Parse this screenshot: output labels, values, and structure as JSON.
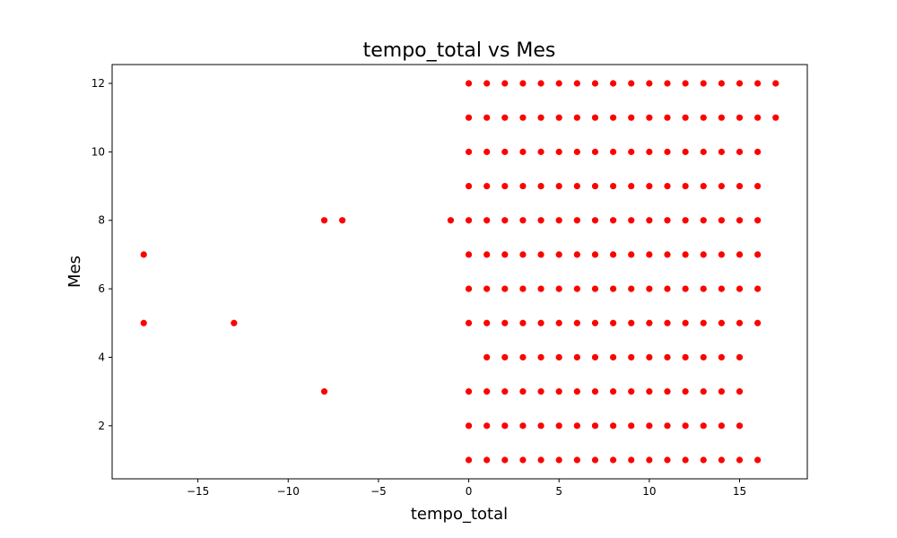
{
  "chart_data": {
    "type": "scatter",
    "title": "tempo_total vs Mes",
    "xlabel": "tempo_total",
    "ylabel": "Mes",
    "xlim": [
      -19.75,
      18.75
    ],
    "ylim": [
      0.45,
      12.55
    ],
    "xticks": [
      -15,
      -10,
      -5,
      0,
      5,
      10,
      15
    ],
    "xtick_labels": [
      "−15",
      "−10",
      "−5",
      "0",
      "5",
      "10",
      "15"
    ],
    "yticks": [
      2,
      4,
      6,
      8,
      10,
      12
    ],
    "ytick_labels": [
      "2",
      "4",
      "6",
      "8",
      "10",
      "12"
    ],
    "grid": false,
    "marker_color": "#ff0000",
    "series": [
      {
        "points": [
          [
            0,
            12
          ],
          [
            1,
            12
          ],
          [
            2,
            12
          ],
          [
            3,
            12
          ],
          [
            4,
            12
          ],
          [
            5,
            12
          ],
          [
            6,
            12
          ],
          [
            7,
            12
          ],
          [
            8,
            12
          ],
          [
            9,
            12
          ],
          [
            10,
            12
          ],
          [
            11,
            12
          ],
          [
            12,
            12
          ],
          [
            13,
            12
          ],
          [
            14,
            12
          ],
          [
            15,
            12
          ],
          [
            16,
            12
          ],
          [
            17,
            12
          ],
          [
            0,
            11
          ],
          [
            1,
            11
          ],
          [
            2,
            11
          ],
          [
            3,
            11
          ],
          [
            4,
            11
          ],
          [
            5,
            11
          ],
          [
            6,
            11
          ],
          [
            7,
            11
          ],
          [
            8,
            11
          ],
          [
            9,
            11
          ],
          [
            10,
            11
          ],
          [
            11,
            11
          ],
          [
            12,
            11
          ],
          [
            13,
            11
          ],
          [
            14,
            11
          ],
          [
            15,
            11
          ],
          [
            16,
            11
          ],
          [
            17,
            11
          ],
          [
            0,
            10
          ],
          [
            1,
            10
          ],
          [
            2,
            10
          ],
          [
            3,
            10
          ],
          [
            4,
            10
          ],
          [
            5,
            10
          ],
          [
            6,
            10
          ],
          [
            7,
            10
          ],
          [
            8,
            10
          ],
          [
            9,
            10
          ],
          [
            10,
            10
          ],
          [
            11,
            10
          ],
          [
            12,
            10
          ],
          [
            13,
            10
          ],
          [
            14,
            10
          ],
          [
            15,
            10
          ],
          [
            16,
            10
          ],
          [
            0,
            9
          ],
          [
            1,
            9
          ],
          [
            2,
            9
          ],
          [
            3,
            9
          ],
          [
            4,
            9
          ],
          [
            5,
            9
          ],
          [
            6,
            9
          ],
          [
            7,
            9
          ],
          [
            8,
            9
          ],
          [
            9,
            9
          ],
          [
            10,
            9
          ],
          [
            11,
            9
          ],
          [
            12,
            9
          ],
          [
            13,
            9
          ],
          [
            14,
            9
          ],
          [
            15,
            9
          ],
          [
            16,
            9
          ],
          [
            -8,
            8
          ],
          [
            -7,
            8
          ],
          [
            -1,
            8
          ],
          [
            0,
            8
          ],
          [
            1,
            8
          ],
          [
            2,
            8
          ],
          [
            3,
            8
          ],
          [
            4,
            8
          ],
          [
            5,
            8
          ],
          [
            6,
            8
          ],
          [
            7,
            8
          ],
          [
            8,
            8
          ],
          [
            9,
            8
          ],
          [
            10,
            8
          ],
          [
            11,
            8
          ],
          [
            12,
            8
          ],
          [
            13,
            8
          ],
          [
            14,
            8
          ],
          [
            15,
            8
          ],
          [
            16,
            8
          ],
          [
            -18,
            7
          ],
          [
            0,
            7
          ],
          [
            1,
            7
          ],
          [
            2,
            7
          ],
          [
            3,
            7
          ],
          [
            4,
            7
          ],
          [
            5,
            7
          ],
          [
            6,
            7
          ],
          [
            7,
            7
          ],
          [
            8,
            7
          ],
          [
            9,
            7
          ],
          [
            10,
            7
          ],
          [
            11,
            7
          ],
          [
            12,
            7
          ],
          [
            13,
            7
          ],
          [
            14,
            7
          ],
          [
            15,
            7
          ],
          [
            16,
            7
          ],
          [
            0,
            6
          ],
          [
            1,
            6
          ],
          [
            2,
            6
          ],
          [
            3,
            6
          ],
          [
            4,
            6
          ],
          [
            5,
            6
          ],
          [
            6,
            6
          ],
          [
            7,
            6
          ],
          [
            8,
            6
          ],
          [
            9,
            6
          ],
          [
            10,
            6
          ],
          [
            11,
            6
          ],
          [
            12,
            6
          ],
          [
            13,
            6
          ],
          [
            14,
            6
          ],
          [
            15,
            6
          ],
          [
            16,
            6
          ],
          [
            -18,
            5
          ],
          [
            -13,
            5
          ],
          [
            0,
            5
          ],
          [
            1,
            5
          ],
          [
            2,
            5
          ],
          [
            3,
            5
          ],
          [
            4,
            5
          ],
          [
            5,
            5
          ],
          [
            6,
            5
          ],
          [
            7,
            5
          ],
          [
            8,
            5
          ],
          [
            9,
            5
          ],
          [
            10,
            5
          ],
          [
            11,
            5
          ],
          [
            12,
            5
          ],
          [
            13,
            5
          ],
          [
            14,
            5
          ],
          [
            15,
            5
          ],
          [
            16,
            5
          ],
          [
            1,
            4
          ],
          [
            2,
            4
          ],
          [
            3,
            4
          ],
          [
            4,
            4
          ],
          [
            5,
            4
          ],
          [
            6,
            4
          ],
          [
            7,
            4
          ],
          [
            8,
            4
          ],
          [
            9,
            4
          ],
          [
            10,
            4
          ],
          [
            11,
            4
          ],
          [
            12,
            4
          ],
          [
            13,
            4
          ],
          [
            14,
            4
          ],
          [
            15,
            4
          ],
          [
            -8,
            3
          ],
          [
            0,
            3
          ],
          [
            1,
            3
          ],
          [
            2,
            3
          ],
          [
            3,
            3
          ],
          [
            4,
            3
          ],
          [
            5,
            3
          ],
          [
            6,
            3
          ],
          [
            7,
            3
          ],
          [
            8,
            3
          ],
          [
            9,
            3
          ],
          [
            10,
            3
          ],
          [
            11,
            3
          ],
          [
            12,
            3
          ],
          [
            13,
            3
          ],
          [
            14,
            3
          ],
          [
            15,
            3
          ],
          [
            0,
            2
          ],
          [
            1,
            2
          ],
          [
            2,
            2
          ],
          [
            3,
            2
          ],
          [
            4,
            2
          ],
          [
            5,
            2
          ],
          [
            6,
            2
          ],
          [
            7,
            2
          ],
          [
            8,
            2
          ],
          [
            9,
            2
          ],
          [
            10,
            2
          ],
          [
            11,
            2
          ],
          [
            12,
            2
          ],
          [
            13,
            2
          ],
          [
            14,
            2
          ],
          [
            15,
            2
          ],
          [
            0,
            1
          ],
          [
            1,
            1
          ],
          [
            2,
            1
          ],
          [
            3,
            1
          ],
          [
            4,
            1
          ],
          [
            5,
            1
          ],
          [
            6,
            1
          ],
          [
            7,
            1
          ],
          [
            8,
            1
          ],
          [
            9,
            1
          ],
          [
            10,
            1
          ],
          [
            11,
            1
          ],
          [
            12,
            1
          ],
          [
            13,
            1
          ],
          [
            14,
            1
          ],
          [
            15,
            1
          ],
          [
            16,
            1
          ]
        ]
      }
    ]
  }
}
